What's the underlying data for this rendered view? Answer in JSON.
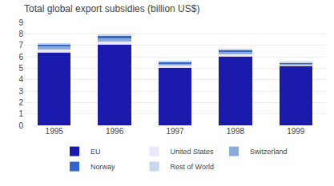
{
  "chart_data": {
    "type": "bar",
    "stacked": true,
    "title": "Total global export subsidies (billion US$)",
    "categories": [
      "1995",
      "1996",
      "1997",
      "1998",
      "1999"
    ],
    "series": [
      {
        "name": "EU",
        "color": "#1a1aad",
        "values": [
          6.35,
          7.05,
          5.0,
          6.0,
          5.2
        ]
      },
      {
        "name": "United States",
        "color": "#e8e8f8",
        "values": [
          0.3,
          0.3,
          0.2,
          0.2,
          0.1
        ]
      },
      {
        "name": "Switzerland",
        "color": "#88aadd",
        "values": [
          0.25,
          0.28,
          0.2,
          0.2,
          0.1
        ]
      },
      {
        "name": "Norway",
        "color": "#3366cc",
        "values": [
          0.2,
          0.2,
          0.15,
          0.2,
          0.1
        ]
      },
      {
        "name": "Rest of World",
        "color": "#c8d8ee",
        "values": [
          0.1,
          0.1,
          0.05,
          0.1,
          0.05
        ]
      }
    ],
    "ylim": [
      0,
      9
    ],
    "yticks": [
      0,
      1,
      2,
      3,
      4,
      5,
      6,
      7,
      8,
      9
    ],
    "grid": true,
    "legend": "bottom"
  }
}
